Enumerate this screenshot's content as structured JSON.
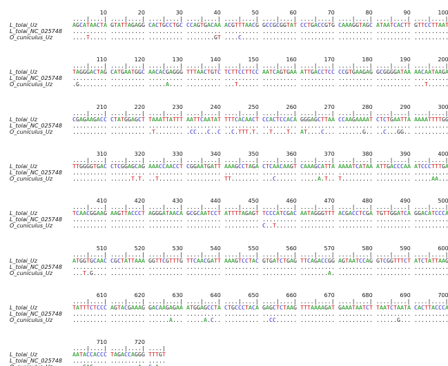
{
  "colors": {
    "A": "#149414",
    "C": "#2a2ad0",
    "G": "#2b2b2b",
    "T": "#d01c1c"
  },
  "blocks": [
    {
      "ticks": [
        10,
        20,
        30,
        40,
        50,
        60,
        70,
        80,
        90,
        100
      ],
      "ruler": "....|....| ....|....| ....|....| ....|....| ....|....| ....|....| ....|....| ....|....| ....|....| ....|....|",
      "rows": [
        {
          "name": "L_tolai_Uz",
          "seq": "AGCATAACTA GTATTAGAGG CACTGCCTGC CCAGTGACAA ACGTTTAACG GCCGCGGTAT CCTGACCGTG CAAAGGTAGC ATAATCACTT GTTCCTTAAT"
        },
        {
          "name": "L_tolai_NC_025748",
          "seq": ".......... .......... .......... .......... .......... .......... .......... .......... .......... .........."
        },
        {
          "name": "O_cuniculus_Uz",
          "seq": "....T..... .......... .......... ........GT ....C..... .......... .......... .......... .......... .........."
        }
      ]
    },
    {
      "ticks": [
        110,
        120,
        130,
        140,
        150,
        160,
        170,
        180,
        190,
        200
      ],
      "ruler": "....|....| ....|....| ....|....| ....|....| ....|....| ....|....| ....|....| ....|....| ....|....| ....|....|",
      "rows": [
        {
          "name": "L_tolai_Uz",
          "seq": "TAGGGACTAG CATGAATGGC AACACGAGGG TTTAACTGTC TCTTCCTTCC AATCAGTGAA ATTGACCTCC CCGTGAAGAG GCGGGGATAA AACAATAAGA"
        },
        {
          "name": "L_tolai_NC_025748",
          "seq": ".......... .......... .......... .......... .......... .......... .......... .......... .......... .........."
        },
        {
          "name": "O_cuniculus_Uz",
          "seq": ".G........ .......... .....A.... .......... ...T...... .......... .......... .......... .......... ...T......"
        }
      ]
    },
    {
      "ticks": [
        210,
        220,
        230,
        240,
        250,
        260,
        270,
        280,
        290,
        300
      ],
      "ruler": "....|....| ....|....| ....|....| ....|....| ....|....| ....|....| ....|....| ....|....| ....|....| ....|....|",
      "rows": [
        {
          "name": "L_tolai_Uz",
          "seq": "CGAGAAGACC CTATGGAGCT TAAATTATTT AATTCAATAT TTTCACAACT CCACTCCACA GGGAGCTTAA CCAAGAAAAT CTCTGAATTA AAAATTTTGG"
        },
        {
          "name": "L_tolai_NC_025748",
          "seq": ".......... .......... .......... .......... .......... .......... .......... .......... .......... .........."
        },
        {
          "name": "O_cuniculus_Uz",
          "seq": ".......... .......... .T........ .CC...C..C ..C.TTT.T. ..T....T.. AT....C... .......G.. ..C...GG.. .........."
        }
      ]
    },
    {
      "ticks": [
        310,
        320,
        330,
        340,
        350,
        360,
        370,
        380,
        390,
        400
      ],
      "ruler": "....|....| ....|....| ....|....| ....|....| ....|....| ....|....| ....|....| ....|....| ....|....| ....|....|",
      "rows": [
        {
          "name": "L_tolai_Uz",
          "seq": "TTGGGGTGAC CTCGGAGCAG AAACCAACCT CGGAATGATT AAAGCCTAGA CTCAACAAGT CAAAGCATTA AAAATCATAA ATTGACCCAA ATCCCTTTGA"
        },
        {
          "name": "L_tolai_NC_025748",
          "seq": ".......... .......... .......... .......... .......... .......... .......... .......... .......... .........."
        },
        {
          "name": "O_cuniculus_Uz",
          "seq": ".......... ......T.T. ..T....... .......... TT........ ...C...... .....A.T.. T......... .......... .....AA..."
        }
      ]
    },
    {
      "ticks": [
        410,
        420,
        430,
        440,
        450,
        460,
        470,
        480,
        490,
        500
      ],
      "ruler": "....|....| ....|....| ....|....| ....|....| ....|....| ....|....| ....|....| ....|....| ....|....| ....|....|",
      "rows": [
        {
          "name": "L_tolai_Uz",
          "seq": "TCAACGGAAG AAGTTACCCT AGGGATAACA GCGCAATCCT ATTTTAGAGT TCCCATCGAC AATAGGGTTT ACGACCTCGA TGTTGGATCA GGACATCCCA"
        },
        {
          "name": "L_tolai_NC_025748",
          "seq": ".......... .......... .......... .......... .......... .......... .......... .......... .......... .........."
        },
        {
          "name": "O_cuniculus_Uz",
          "seq": ".......... .......... .......... .......... .......... C..T...... .......... .......... .......... .........."
        }
      ]
    },
    {
      "ticks": [
        510,
        520,
        530,
        540,
        550,
        560,
        570,
        580,
        590,
        600
      ],
      "ruler": "....|....| ....|....| ....|....| ....|....| ....|....| ....|....| ....|....| ....|....| ....|....| ....|....|",
      "rows": [
        {
          "name": "L_tolai_Uz",
          "seq": "ATGGTGCAAC CGCTATTAAA GGTTCGTTTG TTCAACGATT AAAGTCCTAC GTGATCTGAG TTCAGACCGG AGTAATCCAG GTCGGTTTCT ATCTATTAAG"
        },
        {
          "name": "L_tolai_NC_025748",
          "seq": ".......... .......... .......... .......... .......... .......... .......... .......... .......... .........."
        },
        {
          "name": "O_cuniculus_Uz",
          "seq": "...T.G.... .......... .......... .......... .......... .......... ........A. .......... .......... .........."
        }
      ]
    },
    {
      "ticks": [
        610,
        620,
        630,
        640,
        650,
        660,
        670,
        680,
        690,
        700
      ],
      "ruler": "....|....| ....|....| ....|....| ....|....| ....|....| ....|....| ....|....| ....|....| ....|....| ....|....|",
      "rows": [
        {
          "name": "L_tolai_Uz",
          "seq": "TATTTCTCCC AGTACGAAAG GACAAGAGAA ATGGAGCCTA CTGCCCTACA GAGCTCTAAG TTTAAAAGAT GAAATAATCT TAATCTAATA CACTTACCCA"
        },
        {
          "name": "L_tolai_NC_025748",
          "seq": ".......... .......... .......... .......... .......... .......... .......... .......... .......... .........."
        },
        {
          "name": "O_cuniculus_Uz",
          "seq": ".......... .......... ......A... .....A.C.. .......... ..CC...... .......... .......... ......G... .........."
        }
      ]
    },
    {
      "ticks": [
        710,
        720
      ],
      "ruler": "....|....| ....|....| ....|",
      "rows": [
        {
          "name": "L_tolai_Uz",
          "seq": "AATACCACCC TAGACCAGGG TTTGT"
        },
        {
          "name": "L_tolai_NC_025748",
          "seq": ".......... .......... ....."
        },
        {
          "name": "O_cuniculus_Uz",
          "seq": "...GAG.... ........A. C.A.."
        }
      ]
    }
  ]
}
